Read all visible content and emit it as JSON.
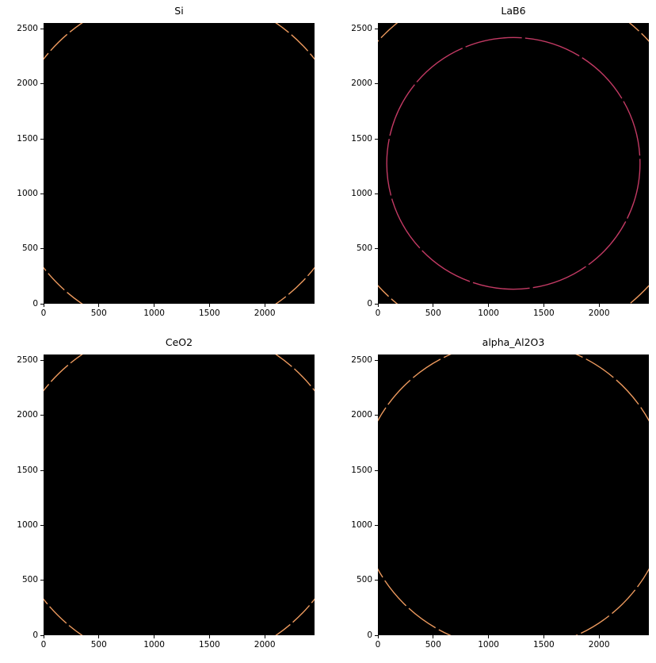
{
  "figure": {
    "background_color": "#ffffff",
    "text_color": "#000000"
  },
  "colors": {
    "panel_background": "#000000",
    "ring_orange": "#ed9a5e",
    "ring_crimson": "#c33a64"
  },
  "chart_data": [
    {
      "id": "si",
      "type": "heatmap",
      "title": "Si",
      "xlabel": "",
      "ylabel": "",
      "xlim": [
        0,
        2450
      ],
      "ylim": [
        0,
        2555
      ],
      "x_tick_labels": [
        "0",
        "500",
        "1000",
        "1500",
        "2000"
      ],
      "y_tick_labels": [
        "0",
        "500",
        "1000",
        "1500",
        "2000",
        "2500"
      ],
      "grid": false,
      "legend": "none",
      "background_color": "#000000",
      "rings": [
        {
          "center": [
            1225,
            1277.5
          ],
          "radius": 1550,
          "color": "#ed9a5e",
          "dash": "210 32",
          "dash_offset": 60
        }
      ]
    },
    {
      "id": "lab6",
      "type": "heatmap",
      "title": "LaB6",
      "xlabel": "",
      "ylabel": "",
      "xlim": [
        0,
        2450
      ],
      "ylim": [
        0,
        2555
      ],
      "x_tick_labels": [
        "0",
        "500",
        "1000",
        "1500",
        "2000"
      ],
      "y_tick_labels": [
        "0",
        "500",
        "1000",
        "1500",
        "2000",
        "2500"
      ],
      "grid": false,
      "legend": "none",
      "background_color": "#000000",
      "rings": [
        {
          "center": [
            1225,
            1277.5
          ],
          "radius": 1145,
          "color": "#c33a64",
          "dash": "520 30",
          "dash_offset": 0
        },
        {
          "center": [
            1225,
            1277.5
          ],
          "radius": 1655,
          "color": "#ed9a5e",
          "dash": "230 32",
          "dash_offset": 90
        }
      ]
    },
    {
      "id": "ceo2",
      "type": "heatmap",
      "title": "CeO2",
      "xlabel": "",
      "ylabel": "",
      "xlim": [
        0,
        2450
      ],
      "ylim": [
        0,
        2555
      ],
      "x_tick_labels": [
        "0",
        "500",
        "1000",
        "1500",
        "2000"
      ],
      "y_tick_labels": [
        "0",
        "500",
        "1000",
        "1500",
        "2000",
        "2500"
      ],
      "grid": false,
      "legend": "none",
      "background_color": "#000000",
      "rings": [
        {
          "center": [
            1225,
            1277.5
          ],
          "radius": 1550,
          "color": "#ed9a5e",
          "dash": "215 30",
          "dash_offset": 130
        }
      ]
    },
    {
      "id": "alpha_al2o3",
      "type": "heatmap",
      "title": "alpha_Al2O3",
      "xlabel": "",
      "ylabel": "",
      "xlim": [
        0,
        2450
      ],
      "ylim": [
        0,
        2555
      ],
      "x_tick_labels": [
        "0",
        "500",
        "1000",
        "1500",
        "2000"
      ],
      "y_tick_labels": [
        "0",
        "500",
        "1000",
        "1500",
        "2000",
        "2500"
      ],
      "grid": false,
      "legend": "none",
      "background_color": "#000000",
      "rings": [
        {
          "center": [
            1225,
            1277.5
          ],
          "radius": 1400,
          "color": "#ed9a5e",
          "dash": "300 34",
          "dash_offset": 70
        }
      ]
    }
  ]
}
